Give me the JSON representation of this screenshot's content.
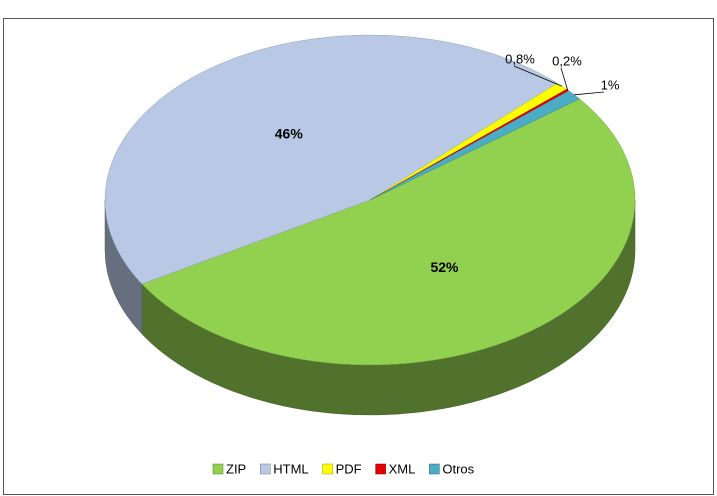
{
  "chart_data": {
    "type": "pie",
    "categories": [
      "ZIP",
      "HTML",
      "PDF",
      "XML",
      "Otros"
    ],
    "values": [
      52,
      46,
      0.8,
      0.2,
      1
    ],
    "value_labels": [
      "52%",
      "46%",
      "0,8%",
      "0,2%",
      "1%"
    ],
    "colors": [
      "#92d050",
      "#b9c9e5",
      "#ffff00",
      "#e00000",
      "#4bacc6"
    ],
    "legend": "bottom"
  }
}
